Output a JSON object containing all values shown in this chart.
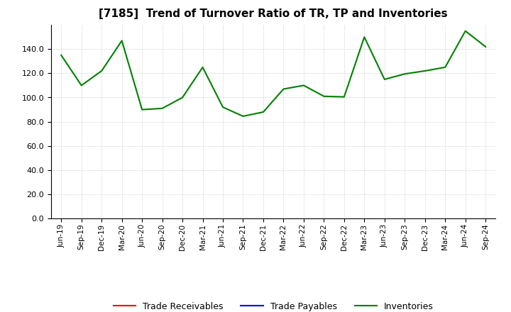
{
  "title": "[7185]  Trend of Turnover Ratio of TR, TP and Inventories",
  "x_labels": [
    "Jun-19",
    "Sep-19",
    "Dec-19",
    "Mar-20",
    "Jun-20",
    "Sep-20",
    "Dec-20",
    "Mar-21",
    "Jun-21",
    "Sep-21",
    "Dec-21",
    "Mar-22",
    "Jun-22",
    "Sep-22",
    "Dec-22",
    "Mar-23",
    "Jun-23",
    "Sep-23",
    "Dec-23",
    "Mar-24",
    "Jun-24",
    "Sep-24"
  ],
  "trade_receivables": [
    null,
    null,
    null,
    null,
    null,
    null,
    null,
    null,
    null,
    null,
    null,
    null,
    null,
    null,
    null,
    null,
    null,
    null,
    null,
    null,
    null,
    null
  ],
  "trade_payables": [
    null,
    null,
    null,
    null,
    null,
    null,
    null,
    null,
    null,
    null,
    null,
    null,
    null,
    null,
    null,
    null,
    null,
    null,
    null,
    null,
    null,
    null
  ],
  "inventories": [
    135.0,
    110.0,
    122.0,
    147.0,
    90.0,
    91.0,
    100.0,
    125.0,
    92.0,
    84.5,
    88.0,
    107.0,
    110.0,
    101.0,
    100.5,
    150.0,
    115.0,
    119.5,
    122.0,
    125.0,
    155.0,
    142.0
  ],
  "ylim": [
    0,
    160
  ],
  "yticks": [
    0.0,
    20.0,
    40.0,
    60.0,
    80.0,
    100.0,
    120.0,
    140.0
  ],
  "line_color_tr": "#ff0000",
  "line_color_tp": "#0000ff",
  "line_color_inv": "#008000",
  "background_color": "#ffffff",
  "grid_color": "#b0b0b0",
  "title_fontsize": 11,
  "legend_labels": [
    "Trade Receivables",
    "Trade Payables",
    "Inventories"
  ]
}
